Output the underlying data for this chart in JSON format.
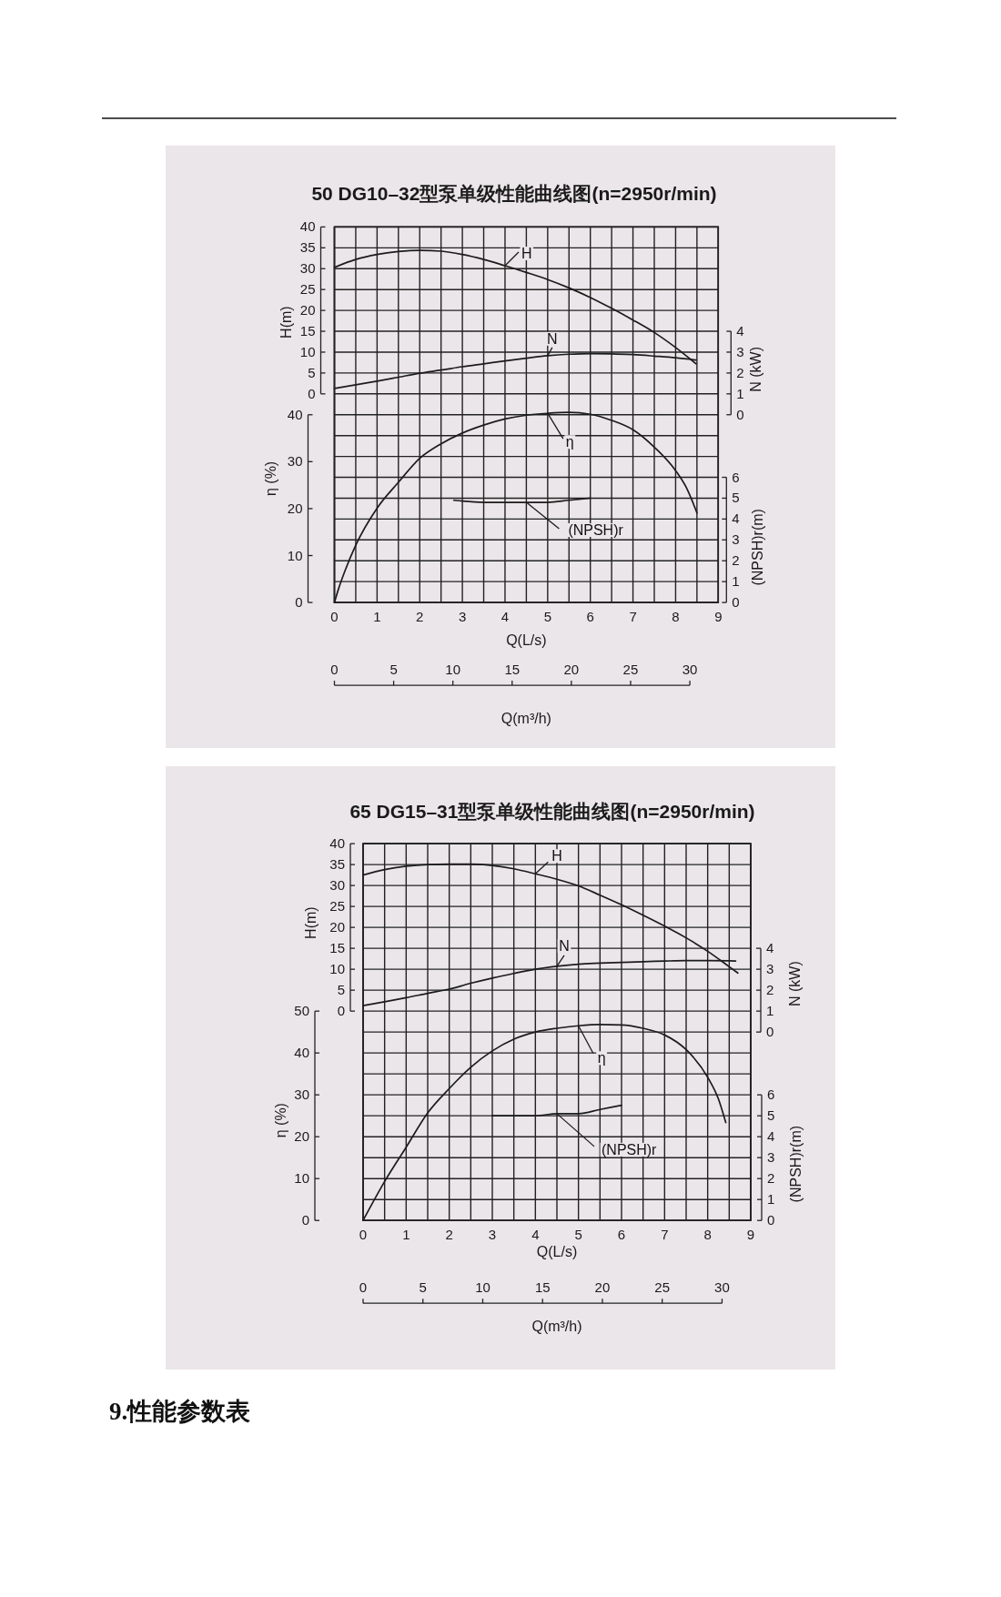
{
  "chart_data": [
    {
      "type": "line",
      "title": "50 DG10–32型泵单级性能曲线图(n=2950r/min)",
      "ylabel": "H(m)",
      "y2label": "N (kW)",
      "xlim": [
        0,
        9
      ],
      "xticks": [
        0,
        {
          "value": 0.5,
          "label": null
        },
        1,
        {
          "value": 1.5,
          "label": null
        },
        2,
        {
          "value": 2.5,
          "label": null
        },
        3,
        {
          "value": 3.5,
          "label": null
        },
        4,
        {
          "value": 4.5,
          "label": null
        },
        5,
        {
          "value": 5.5,
          "label": null
        },
        6,
        {
          "value": 6.5,
          "label": null
        },
        7,
        {
          "value": 7.5,
          "label": null
        },
        8,
        {
          "value": 8.5,
          "label": null
        },
        9
      ],
      "ylim": [
        -50,
        40
      ],
      "yticks": [
        0,
        5,
        10,
        15,
        20,
        25,
        30,
        35,
        40
      ],
      "y2lim": [
        -9,
        9
      ],
      "y2ticks": [
        0,
        1,
        2,
        3,
        4
      ],
      "grid": true,
      "tick_labels": "y",
      "series": [
        {
          "name": "H",
          "color": "#1c1c1c",
          "x": [
            0,
            0.5,
            1,
            1.5,
            2,
            2.5,
            3,
            3.5,
            4,
            4.5,
            5,
            5.5,
            6,
            6.5,
            7,
            7.5,
            8,
            8.48
          ],
          "values": [
            30.3,
            32.2,
            33.4,
            34.1,
            34.4,
            34.2,
            33.4,
            32.2,
            30.7,
            29.1,
            27.4,
            25.4,
            23.1,
            20.5,
            17.7,
            14.7,
            11.1,
            7.2
          ]
        },
        {
          "name": "N",
          "color": "#1c1c1c",
          "axis": "y2",
          "x": [
            0,
            0.5,
            1,
            1.5,
            2,
            2.5,
            3,
            3.5,
            4,
            4.5,
            5,
            5.5,
            6,
            6.5,
            7,
            7.5,
            8,
            8.48
          ],
          "values": [
            1.26,
            1.43,
            1.61,
            1.8,
            1.99,
            2.14,
            2.3,
            2.44,
            2.58,
            2.71,
            2.83,
            2.9,
            2.93,
            2.92,
            2.88,
            2.81,
            2.73,
            2.62
          ]
        }
      ]
    },
    {
      "type": "line",
      "xlabel": "Q(L/s)",
      "x2label": "Q(m³/h)",
      "ylabel": "η (%)",
      "y2label": "(NPSH)r(m)",
      "xlim": [
        0,
        9
      ],
      "xticks": [
        0,
        1,
        2,
        3,
        4,
        5,
        6,
        7,
        8,
        9
      ],
      "x2lim": [
        0,
        32.4
      ],
      "x2ticks": [
        0,
        5,
        10,
        15,
        20,
        25,
        30
      ],
      "ylim": [
        0,
        80
      ],
      "yticks": [
        0,
        10,
        20,
        30,
        40
      ],
      "y2lim": [
        0,
        18
      ],
      "y2ticks": [
        0,
        1,
        2,
        3,
        4,
        5,
        6
      ],
      "series": [
        {
          "name": "η",
          "color": "#1c1c1c",
          "x": [
            0,
            0.1,
            0.25,
            0.5,
            1,
            1.5,
            2,
            2.5,
            3,
            3.5,
            4,
            4.5,
            5,
            5.5,
            6,
            6.5,
            7,
            7.5,
            8,
            8.25,
            8.5
          ],
          "values": [
            0,
            3.0,
            6.8,
            12.2,
            20.1,
            25.6,
            30.7,
            33.8,
            36.1,
            37.8,
            39.1,
            39.9,
            40.3,
            40.5,
            40.1,
            38.8,
            36.8,
            33.1,
            28.1,
            24.5,
            19.1
          ]
        },
        {
          "name": "(NPSH)r",
          "color": "#1c1c1c",
          "axis": "y2",
          "x": [
            2.8,
            3.5,
            4,
            4.5,
            5,
            5.5,
            6
          ],
          "values": [
            4.9,
            4.8,
            4.8,
            4.8,
            4.8,
            4.9,
            5.0
          ]
        }
      ]
    },
    {
      "type": "line",
      "title": "65 DG15–31型泵单级性能曲线图(n=2950r/min)",
      "ylabel": "H(m)",
      "y2label": "N (kW)",
      "xlim": [
        0,
        9
      ],
      "xticks": [
        0,
        {
          "value": 0.5,
          "label": null
        },
        1,
        {
          "value": 1.5,
          "label": null
        },
        2,
        {
          "value": 2.5,
          "label": null
        },
        3,
        {
          "value": 3.5,
          "label": null
        },
        4,
        {
          "value": 4.5,
          "label": null
        },
        5,
        {
          "value": 5.5,
          "label": null
        },
        6,
        {
          "value": 6.5,
          "label": null
        },
        7,
        {
          "value": 7.5,
          "label": null
        },
        8,
        {
          "value": 8.5,
          "label": null
        },
        9
      ],
      "ylim": [
        -50,
        40
      ],
      "yticks": [
        0,
        5,
        10,
        15,
        20,
        25,
        30,
        35,
        40
      ],
      "y2lim": [
        -9,
        9
      ],
      "y2ticks": [
        0,
        1,
        2,
        3,
        4
      ],
      "grid": true,
      "tick_labels": "y",
      "series": [
        {
          "name": "H",
          "color": "#1c1c1c",
          "x": [
            0,
            0.5,
            1,
            1.5,
            2,
            2.5,
            3,
            3.5,
            4,
            4.5,
            5,
            5.5,
            6,
            6.5,
            7,
            7.5,
            8,
            8.5,
            8.7
          ],
          "values": [
            32.5,
            33.8,
            34.6,
            35.0,
            35.1,
            35.1,
            34.8,
            34.0,
            32.8,
            31.5,
            29.9,
            27.7,
            25.4,
            22.9,
            20.3,
            17.5,
            14.3,
            10.6,
            9.1
          ]
        },
        {
          "name": "N",
          "color": "#1c1c1c",
          "axis": "y2",
          "x": [
            0,
            0.5,
            1,
            1.5,
            2,
            2.5,
            3,
            3.5,
            4,
            4.5,
            5,
            5.5,
            6,
            6.5,
            7,
            7.5,
            8,
            8.5,
            8.65
          ],
          "values": [
            1.26,
            1.45,
            1.64,
            1.85,
            2.05,
            2.33,
            2.58,
            2.8,
            3.0,
            3.14,
            3.24,
            3.29,
            3.33,
            3.36,
            3.39,
            3.41,
            3.41,
            3.4,
            3.39
          ]
        }
      ]
    },
    {
      "type": "line",
      "xlabel": "Q(L/s)",
      "x2label": "Q(m³/h)",
      "ylabel": "η (%)",
      "y2label": "(NPSH)r(m)",
      "xlim": [
        0,
        9
      ],
      "xticks": [
        0,
        1,
        2,
        3,
        4,
        5,
        6,
        7,
        8,
        9
      ],
      "x2lim": [
        0,
        32.4
      ],
      "x2ticks": [
        0,
        5,
        10,
        15,
        20,
        25,
        30
      ],
      "ylim": [
        0,
        90
      ],
      "yticks": [
        0,
        10,
        20,
        30,
        40,
        50
      ],
      "y2lim": [
        0,
        18
      ],
      "y2ticks": [
        0,
        1,
        2,
        3,
        4,
        5,
        6
      ],
      "series": [
        {
          "name": "η",
          "color": "#1c1c1c",
          "x": [
            0,
            0.5,
            1,
            1.5,
            2,
            2.5,
            3,
            3.5,
            4,
            4.5,
            5,
            5.5,
            6,
            6.5,
            7,
            7.5,
            8,
            8.25,
            8.42
          ],
          "values": [
            0,
            9.3,
            17.5,
            25.7,
            31.5,
            36.6,
            40.5,
            43.3,
            45.0,
            45.9,
            46.5,
            46.8,
            46.7,
            45.9,
            44.3,
            40.8,
            34.2,
            29.0,
            23.4
          ]
        },
        {
          "name": "(NPSH)r",
          "color": "#1c1c1c",
          "axis": "y2",
          "x": [
            3,
            3.5,
            4,
            4.5,
            5,
            5.5,
            6
          ],
          "values": [
            5.0,
            5.0,
            5.0,
            5.1,
            5.1,
            5.3,
            5.5
          ]
        }
      ],
      "annotations": [
        "9.性能参数表"
      ]
    }
  ]
}
